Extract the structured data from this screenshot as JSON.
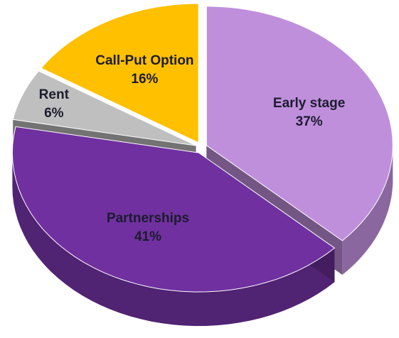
{
  "chart_data": {
    "type": "pie",
    "categories": [
      "Early stage",
      "Partnerships",
      "Rent",
      "Call-Put Option"
    ],
    "values": [
      37,
      41,
      6,
      16
    ],
    "value_labels": [
      "37%",
      "41%",
      "6%",
      "16%"
    ],
    "colors": [
      "#bf8fdc",
      "#7030a0",
      "#bfbfbf",
      "#ffc000"
    ]
  }
}
